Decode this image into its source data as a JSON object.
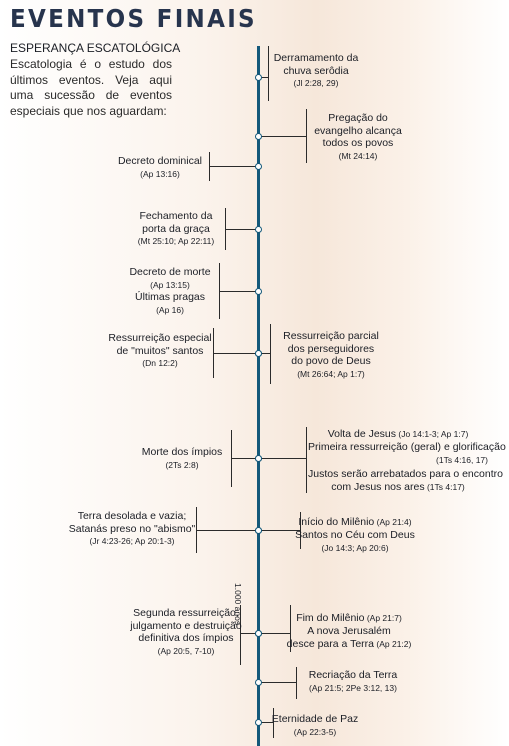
{
  "title": "EVENTOS FINAIS",
  "subtitle": "ESPERANÇA ESCATOLÓGICA",
  "intro": "Escatologia é o estudo dos últimos eventos. Veja aqui uma sucessão de eventos especiais que nos aguardam:",
  "axis_label": "1.000 anos",
  "events": [
    {
      "lines": [
        "Derramamento da",
        "chuva serôdia"
      ],
      "ref": "(Jl 2:28, 29)"
    },
    {
      "lines": [
        "Pregação do",
        "evangelho alcança",
        "todos os povos"
      ],
      "ref": "(Mt 24:14)"
    },
    {
      "lines": [
        "Decreto dominical"
      ],
      "ref": "(Ap 13:16)"
    },
    {
      "lines": [
        "Fechamento da",
        "porta da graça"
      ],
      "ref": "(Mt 25:10; Ap 22:11)"
    },
    {
      "lines": [
        "Decreto de morte"
      ],
      "ref": "(Ap 13:15)",
      "lines2": [
        "Últimas pragas"
      ],
      "ref2": "(Ap 16)"
    },
    {
      "lines": [
        "Ressurreição especial",
        "de \"muitos\" santos"
      ],
      "ref": "(Dn 12:2)"
    },
    {
      "lines": [
        "Ressurreição parcial",
        "dos perseguidores",
        "do povo de Deus"
      ],
      "ref": "(Mt 26:64; Ap 1:7)"
    },
    {
      "rows": [
        {
          "text": "Volta de Jesus",
          "ref": "(Jo 14:1-3; Ap 1:7)"
        },
        {
          "text": "Primeira ressurreição (geral) e glorificação",
          "ref": ""
        },
        {
          "text": "",
          "ref": "(1Ts 4:16, 17)"
        },
        {
          "text": "Justos serão arrebatados para o encontro",
          "ref": ""
        },
        {
          "text": "com Jesus nos ares",
          "ref": "(1Ts 4:17)"
        }
      ]
    },
    {
      "lines": [
        "Morte dos ímpios"
      ],
      "ref": "(2Ts 2:8)"
    },
    {
      "lines": [
        "Terra desolada e vazia;",
        "Satanás preso no \"abismo\""
      ],
      "ref": "(Jr 4:23-26; Ap 20:1-3)"
    },
    {
      "rows": [
        {
          "text": "Início do Milênio",
          "ref": "(Ap 21:4)"
        },
        {
          "text": "Santos no Céu com Deus",
          "ref": ""
        },
        {
          "text": "",
          "ref": "(Jo 14:3; Ap 20:6)"
        }
      ]
    },
    {
      "lines": [
        "Segunda ressurreição,",
        "julgamento e destruição",
        "definitiva dos ímpios"
      ],
      "ref": "(Ap 20:5, 7-10)"
    },
    {
      "rows": [
        {
          "text": "Fim do Milênio",
          "ref": "(Ap 21:7)"
        },
        {
          "text": "A nova Jerusalém",
          "ref": ""
        },
        {
          "text": "desce para a Terra",
          "ref": "(Ap 21:2)"
        }
      ]
    },
    {
      "lines": [
        "Recriação da Terra"
      ],
      "ref": "(Ap 21:5; 2Pe 3:12, 13)"
    },
    {
      "lines": [
        "Eternidade de Paz"
      ],
      "ref": "(Ap 22:3-5)"
    }
  ]
}
